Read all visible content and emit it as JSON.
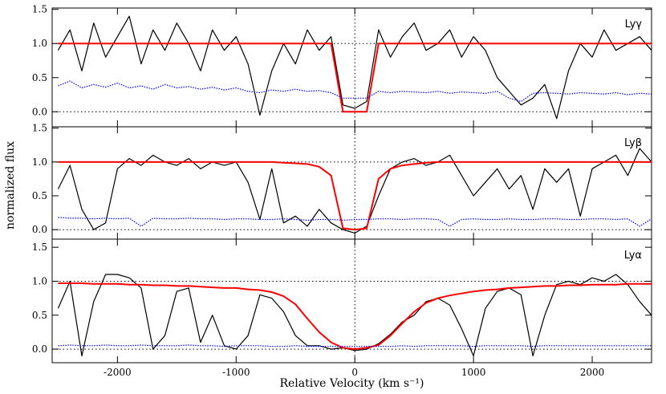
{
  "chart_data": [
    {
      "type": "line",
      "annotation": "Lyγ",
      "x": [
        -2500,
        -2400,
        -2300,
        -2200,
        -2100,
        -2000,
        -1900,
        -1800,
        -1700,
        -1600,
        -1500,
        -1400,
        -1300,
        -1200,
        -1100,
        -1000,
        -900,
        -800,
        -700,
        -600,
        -500,
        -400,
        -300,
        -200,
        -100,
        0,
        100,
        200,
        300,
        400,
        500,
        600,
        700,
        800,
        900,
        1000,
        1100,
        1200,
        1300,
        1400,
        1500,
        1600,
        1700,
        1800,
        1900,
        2000,
        2100,
        2200,
        2300,
        2400,
        2500
      ],
      "series": [
        {
          "color": "#000000",
          "style": "solid",
          "values": [
            0.9,
            1.2,
            0.6,
            1.3,
            0.8,
            1.1,
            1.4,
            0.7,
            1.2,
            0.9,
            1.3,
            1.0,
            0.6,
            1.2,
            0.9,
            1.1,
            0.7,
            -0.05,
            0.6,
            1.0,
            0.7,
            1.2,
            0.9,
            1.1,
            0.1,
            0.05,
            0.15,
            1.2,
            0.8,
            1.1,
            1.3,
            0.9,
            1.0,
            1.2,
            0.8,
            1.1,
            0.9,
            0.5,
            0.3,
            0.1,
            0.2,
            0.4,
            -0.1,
            0.6,
            1.0,
            0.8,
            1.2,
            0.9,
            1.0,
            1.1,
            0.9
          ]
        },
        {
          "color": "#ff0000",
          "style": "solid",
          "values": [
            1,
            1,
            1,
            1,
            1,
            1,
            1,
            1,
            1,
            1,
            1,
            1,
            1,
            1,
            1,
            1,
            1,
            1,
            1,
            1,
            1,
            1,
            1,
            1,
            0,
            0,
            0,
            1,
            1,
            1,
            1,
            1,
            1,
            1,
            1,
            1,
            1,
            1,
            1,
            1,
            1,
            1,
            1,
            1,
            1,
            1,
            1,
            1,
            1,
            1,
            1
          ]
        },
        {
          "color": "#0000ff",
          "style": "dotted",
          "values": [
            0.38,
            0.45,
            0.35,
            0.4,
            0.36,
            0.42,
            0.35,
            0.38,
            0.33,
            0.4,
            0.35,
            0.37,
            0.33,
            0.36,
            0.32,
            0.35,
            0.3,
            0.28,
            0.32,
            0.3,
            0.33,
            0.3,
            0.31,
            0.28,
            0.2,
            0.2,
            0.2,
            0.3,
            0.28,
            0.3,
            0.29,
            0.28,
            0.3,
            0.27,
            0.29,
            0.28,
            0.27,
            0.3,
            0.2,
            0.15,
            0.27,
            0.28,
            0.27,
            0.26,
            0.28,
            0.27,
            0.26,
            0.28,
            0.25,
            0.27,
            0.26
          ]
        }
      ],
      "xlim": [
        -2550,
        2500
      ],
      "ylim": [
        -0.22,
        1.52
      ],
      "xticks": [
        -2000,
        -1000,
        0,
        1000,
        2000
      ],
      "show_xtick_labels": false,
      "yticks": [
        {
          "value": 0,
          "label": "0.0"
        },
        {
          "value": 0.5,
          "label": "0.5"
        },
        {
          "value": 1,
          "label": "1.0"
        },
        {
          "value": 1.5,
          "label": "1.5"
        }
      ],
      "hlines": [
        0,
        1
      ],
      "vlines": [
        0
      ]
    },
    {
      "type": "line",
      "annotation": "Lyβ",
      "ylabel": "normalized flux",
      "x": [
        -2500,
        -2400,
        -2300,
        -2200,
        -2100,
        -2000,
        -1900,
        -1800,
        -1700,
        -1600,
        -1500,
        -1400,
        -1300,
        -1200,
        -1100,
        -1000,
        -900,
        -800,
        -700,
        -600,
        -500,
        -400,
        -300,
        -200,
        -100,
        0,
        100,
        200,
        300,
        400,
        500,
        600,
        700,
        800,
        900,
        1000,
        1100,
        1200,
        1300,
        1400,
        1500,
        1600,
        1700,
        1800,
        1900,
        2000,
        2100,
        2200,
        2300,
        2400,
        2500
      ],
      "series": [
        {
          "color": "#000000",
          "style": "solid",
          "values": [
            0.6,
            0.95,
            0.3,
            0.0,
            0.1,
            0.9,
            1.05,
            0.95,
            1.1,
            1.0,
            0.95,
            1.05,
            0.9,
            1.0,
            0.95,
            1.0,
            0.7,
            0.15,
            0.9,
            0.1,
            0.2,
            0.05,
            0.3,
            0.1,
            0.0,
            -0.05,
            0.05,
            0.5,
            0.9,
            1.0,
            1.05,
            0.95,
            1.0,
            1.1,
            0.8,
            0.5,
            0.7,
            0.9,
            0.6,
            0.8,
            0.3,
            0.9,
            0.7,
            0.9,
            0.2,
            0.9,
            1.0,
            1.1,
            0.8,
            1.2,
            1.0
          ]
        },
        {
          "color": "#ff0000",
          "style": "solid",
          "values": [
            1,
            1,
            1,
            1,
            1,
            1,
            1,
            1,
            1,
            1,
            1,
            1,
            1,
            1,
            1,
            1,
            1,
            1,
            1,
            0.99,
            0.98,
            0.97,
            0.93,
            0.8,
            0.02,
            0,
            0.02,
            0.75,
            0.9,
            0.95,
            0.97,
            0.99,
            1,
            1,
            1,
            1,
            1,
            1,
            1,
            1,
            1,
            1,
            1,
            1,
            1,
            1,
            1,
            1,
            1,
            1,
            1
          ]
        },
        {
          "color": "#0000ff",
          "style": "dotted",
          "values": [
            0.18,
            0.17,
            0.17,
            0.16,
            0.17,
            0.16,
            0.17,
            0.05,
            0.17,
            0.16,
            0.16,
            0.17,
            0.16,
            0.16,
            0.15,
            0.16,
            0.16,
            0.15,
            0.15,
            0.16,
            0.15,
            0.14,
            0.15,
            0.15,
            0.14,
            0.15,
            0.15,
            0.16,
            0.16,
            0.15,
            0.16,
            0.16,
            0.15,
            0.05,
            0.15,
            0.16,
            0.15,
            0.15,
            0.16,
            0.15,
            0.15,
            0.16,
            0.16,
            0.15,
            0.15,
            0.16,
            0.16,
            0.15,
            0.16,
            0.05,
            0.16
          ]
        }
      ],
      "xlim": [
        -2550,
        2500
      ],
      "ylim": [
        -0.14,
        1.52
      ],
      "xticks": [
        -2000,
        -1000,
        0,
        1000,
        2000
      ],
      "show_xtick_labels": false,
      "yticks": [
        {
          "value": 0,
          "label": "0.0"
        },
        {
          "value": 0.5,
          "label": "0.5"
        },
        {
          "value": 1,
          "label": "1.0"
        },
        {
          "value": 1.5,
          "label": "1.5"
        }
      ],
      "hlines": [
        0,
        1
      ],
      "vlines": [
        0
      ]
    },
    {
      "type": "line",
      "annotation": "Lyα",
      "xlabel": "Relative Velocity (km s⁻¹)",
      "x": [
        -2500,
        -2400,
        -2300,
        -2200,
        -2100,
        -2000,
        -1900,
        -1800,
        -1700,
        -1600,
        -1500,
        -1400,
        -1300,
        -1200,
        -1100,
        -1000,
        -900,
        -800,
        -700,
        -600,
        -500,
        -400,
        -300,
        -200,
        -100,
        0,
        100,
        200,
        300,
        400,
        500,
        600,
        700,
        800,
        900,
        1000,
        1100,
        1200,
        1300,
        1400,
        1500,
        1600,
        1700,
        1800,
        1900,
        2000,
        2100,
        2200,
        2300,
        2400,
        2500
      ],
      "series": [
        {
          "color": "#000000",
          "style": "solid",
          "values": [
            0.6,
            1.0,
            -0.1,
            0.7,
            1.1,
            1.1,
            1.05,
            0.9,
            0.0,
            0.2,
            0.85,
            0.9,
            0.1,
            0.5,
            0.05,
            0.0,
            0.2,
            0.8,
            0.75,
            0.55,
            0.2,
            0.05,
            0.05,
            0.0,
            0.02,
            -0.02,
            0.0,
            0.08,
            0.22,
            0.4,
            0.5,
            0.7,
            0.75,
            0.65,
            0.3,
            -0.1,
            0.6,
            0.85,
            0.9,
            0.8,
            -0.1,
            0.5,
            0.95,
            1.0,
            0.95,
            1.05,
            1.0,
            1.1,
            0.95,
            0.7,
            0.5
          ]
        },
        {
          "color": "#ff0000",
          "style": "solid",
          "values": [
            0.97,
            0.97,
            0.97,
            0.96,
            0.96,
            0.96,
            0.95,
            0.95,
            0.94,
            0.94,
            0.93,
            0.93,
            0.92,
            0.91,
            0.9,
            0.9,
            0.88,
            0.87,
            0.84,
            0.78,
            0.66,
            0.45,
            0.25,
            0.1,
            0.02,
            0,
            0.02,
            0.06,
            0.2,
            0.38,
            0.55,
            0.68,
            0.75,
            0.79,
            0.82,
            0.85,
            0.87,
            0.88,
            0.9,
            0.91,
            0.92,
            0.93,
            0.93,
            0.94,
            0.94,
            0.95,
            0.95,
            0.95,
            0.96,
            0.96,
            0.96
          ]
        },
        {
          "color": "#0000ff",
          "style": "dotted",
          "values": [
            0.05,
            0.06,
            0.05,
            0.05,
            0.06,
            0.05,
            0.05,
            0.06,
            0.05,
            0.05,
            0.05,
            0.06,
            0.05,
            0.05,
            0.04,
            0.05,
            0.05,
            0.05,
            0.04,
            0.04,
            0.05,
            0.04,
            0.04,
            0.04,
            0.04,
            0.04,
            0.04,
            0.04,
            0.04,
            0.05,
            0.04,
            0.05,
            0.05,
            0.05,
            0.05,
            0.04,
            0.05,
            0.05,
            0.05,
            0.05,
            0.04,
            0.05,
            0.05,
            0.05,
            0.05,
            0.05,
            0.05,
            0.05,
            0.05,
            0.05,
            0.05
          ]
        }
      ],
      "xlim": [
        -2550,
        2500
      ],
      "ylim": [
        -0.2,
        1.62
      ],
      "xticks": [
        -2000,
        -1000,
        0,
        1000,
        2000
      ],
      "show_xtick_labels": true,
      "yticks": [
        {
          "value": 0,
          "label": "0.0"
        },
        {
          "value": 0.5,
          "label": "0.5"
        },
        {
          "value": 1,
          "label": "1.0"
        },
        {
          "value": 1.5,
          "label": "1.5"
        }
      ],
      "hlines": [
        0,
        1
      ],
      "vlines": [
        0
      ]
    }
  ]
}
